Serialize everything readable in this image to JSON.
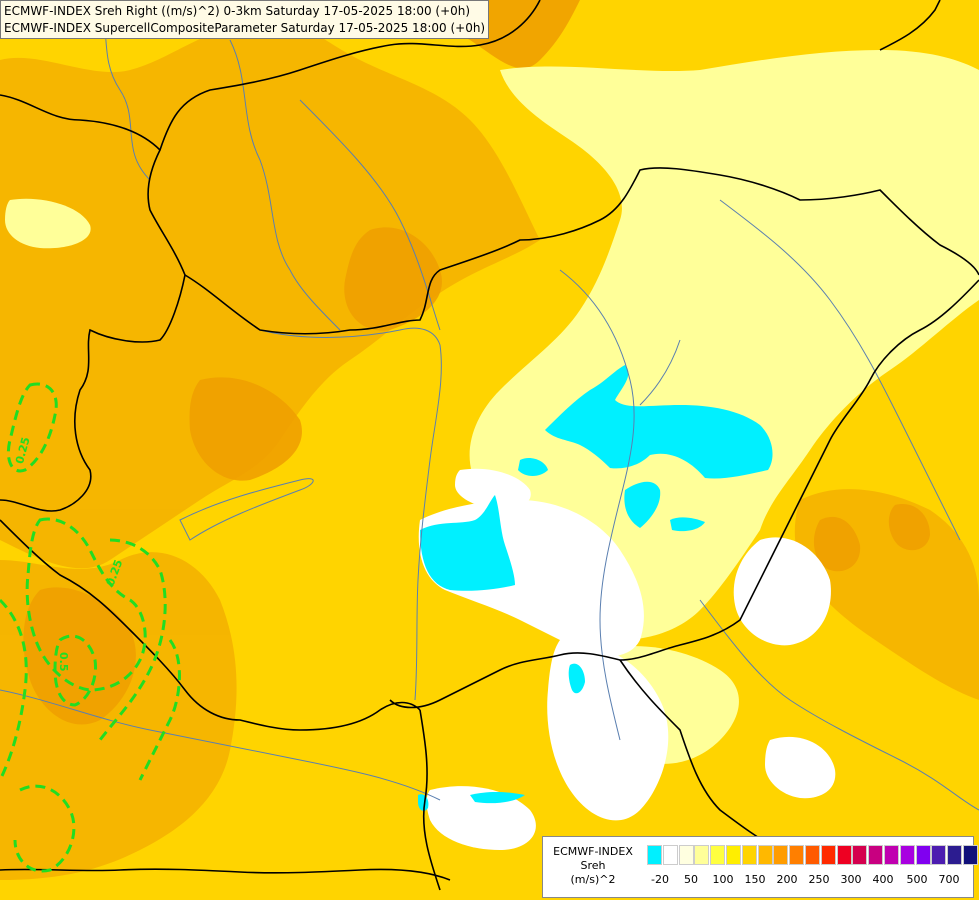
{
  "header": {
    "line1": "ECMWF-INDEX Sreh Right ((m/s)^2) 0-3km Saturday 17-05-2025 18:00 (+0h)",
    "line2": "ECMWF-INDEX SupercellCompositeParameter Saturday 17-05-2025 18:00 (+0h)"
  },
  "map": {
    "background_color": "#ffd400",
    "contour_labels": [
      "0.25",
      "0.25",
      "0.5"
    ],
    "colors": {
      "cyan_region": "#00f0ff",
      "white_region": "#ffffff",
      "pale_region": "#ffff99",
      "orange_region": "#f5b400",
      "dark_orange_region": "#f0a000",
      "border_line": "#000000",
      "river_line": "#5a7fb0",
      "contour_line": "#22dd22"
    }
  },
  "legend": {
    "title_line1": "ECMWF-INDEX",
    "title_line2": "Sreh",
    "title_line3": "(m/s)^2",
    "swatch_colors": [
      "#00f0ff",
      "#ffffff",
      "#ffffe0",
      "#ffff99",
      "#ffff40",
      "#ffee00",
      "#ffd400",
      "#ffb800",
      "#ff9c00",
      "#ff7f00",
      "#ff5a00",
      "#ff2a00",
      "#ee0022",
      "#d4004e",
      "#c80080",
      "#c000b0",
      "#a800e0",
      "#8000f0",
      "#4c1cb0",
      "#2c1c90",
      "#10107a"
    ],
    "ticks": [
      "-20",
      "50",
      "100",
      "150",
      "200",
      "250",
      "300",
      "400",
      "500",
      "700"
    ]
  }
}
